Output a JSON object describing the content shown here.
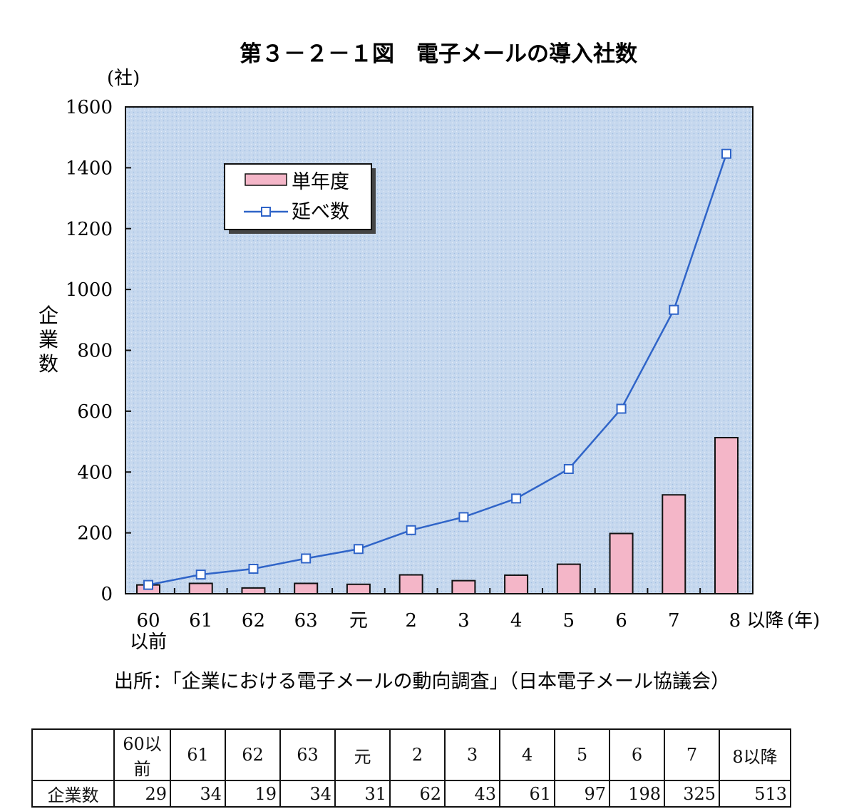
{
  "chart_data": {
    "type": "bar+line",
    "title": "第３－２－１図　電子メールの導入社数",
    "y_unit": "(社)",
    "ylabel": "企業数",
    "x_unit": "(年)",
    "ylim": [
      0,
      1600
    ],
    "y_ticks": [
      "0",
      "200",
      "400",
      "600",
      "800",
      "1000",
      "1200",
      "1400",
      "1600"
    ],
    "categories": [
      "60\n以前",
      "61",
      "62",
      "63",
      "元",
      "2",
      "3",
      "4",
      "5",
      "6",
      "7",
      "8 以降"
    ],
    "series": [
      {
        "name": "単年度",
        "type": "bar",
        "color": "#f4b6c8",
        "values": [
          29,
          34,
          19,
          34,
          31,
          62,
          43,
          61,
          97,
          198,
          325,
          513
        ]
      },
      {
        "name": "延べ数",
        "type": "line",
        "color": "#2f64c8",
        "values": [
          29,
          63,
          82,
          116,
          147,
          209,
          252,
          313,
          410,
          608,
          933,
          1446
        ]
      }
    ],
    "legend": "top-left",
    "background": "#c9daf0"
  },
  "source": "出所：「企業における電子メールの動向調査」（日本電子メール協議会）",
  "table": {
    "headers": [
      "",
      "60以前",
      "61",
      "62",
      "63",
      "元",
      "2",
      "3",
      "4",
      "5",
      "6",
      "7",
      "8以降"
    ],
    "row_label": "企業数",
    "values": [
      "29",
      "34",
      "19",
      "34",
      "31",
      "62",
      "43",
      "61",
      "97",
      "198",
      "325",
      "513"
    ]
  }
}
